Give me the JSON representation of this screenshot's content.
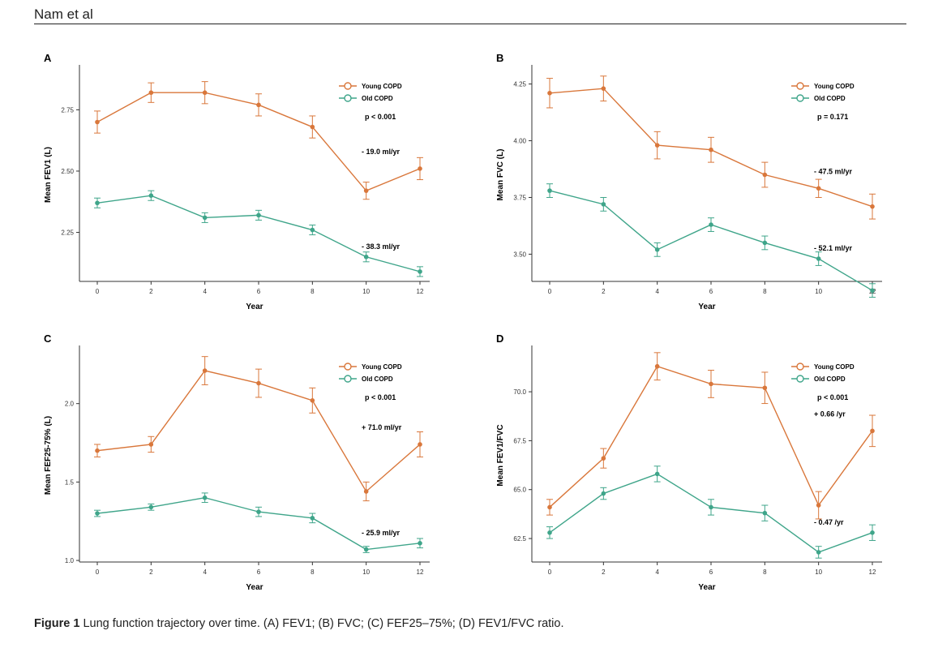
{
  "header": {
    "running_head": "Nam et al"
  },
  "legend": {
    "young": "Young COPD",
    "old": "Old COPD"
  },
  "colors": {
    "young": "#D9773B",
    "old": "#3FA58A",
    "axis": "#333333"
  },
  "caption": {
    "label": "Figure 1",
    "text": "Lung function trajectory over time. (A) FEV1; (B) FVC; (C) FEF25–75%; (D) FEV1/FVC ratio."
  },
  "chart_data": [
    {
      "id": "A",
      "type": "line",
      "title": "A",
      "xlabel": "Year",
      "ylabel": "Mean FEV1 (L)",
      "x": [
        0,
        2,
        4,
        6,
        8,
        10,
        12
      ],
      "xticks": [
        "0",
        "2",
        "4",
        "6",
        "8",
        "10",
        "12"
      ],
      "ylim": [
        2.05,
        2.92
      ],
      "yticks": [
        "2.25",
        "2.50",
        "2.75"
      ],
      "p_value": "p < 0.001",
      "series": [
        {
          "name": "Young COPD",
          "values": [
            2.7,
            2.82,
            2.82,
            2.77,
            2.68,
            2.42,
            2.51
          ],
          "errors": [
            0.045,
            0.04,
            0.045,
            0.045,
            0.045,
            0.035,
            0.045
          ],
          "slope": "- 19.0 ml/yr"
        },
        {
          "name": "Old COPD",
          "values": [
            2.37,
            2.4,
            2.31,
            2.32,
            2.26,
            2.15,
            2.09
          ],
          "errors": [
            0.02,
            0.02,
            0.02,
            0.02,
            0.02,
            0.02,
            0.02
          ],
          "slope": "- 38.3 ml/yr"
        }
      ]
    },
    {
      "id": "B",
      "type": "line",
      "title": "B",
      "xlabel": "Year",
      "ylabel": "Mean FVC (L)",
      "x": [
        0,
        2,
        4,
        6,
        8,
        10,
        12
      ],
      "xticks": [
        "0",
        "2",
        "4",
        "6",
        "8",
        "10",
        "12"
      ],
      "ylim": [
        3.38,
        4.32
      ],
      "yticks": [
        "3.50",
        "3.75",
        "4.00",
        "4.25"
      ],
      "p_value": "p = 0.171",
      "series": [
        {
          "name": "Young COPD",
          "values": [
            4.21,
            4.23,
            3.98,
            3.96,
            3.85,
            3.79,
            3.71
          ],
          "errors": [
            0.065,
            0.055,
            0.06,
            0.055,
            0.055,
            0.04,
            0.055
          ],
          "slope": "- 47.5 ml/yr"
        },
        {
          "name": "Old COPD",
          "values": [
            3.78,
            3.72,
            3.52,
            3.63,
            3.55,
            3.48,
            3.34
          ],
          "errors": [
            0.03,
            0.03,
            0.03,
            0.03,
            0.03,
            0.03,
            0.03
          ],
          "slope": "- 52.1 ml/yr"
        }
      ]
    },
    {
      "id": "C",
      "type": "line",
      "title": "C",
      "xlabel": "Year",
      "ylabel": "Mean FEF25-75% (L)",
      "x": [
        0,
        2,
        4,
        6,
        8,
        10,
        12
      ],
      "xticks": [
        "0",
        "2",
        "4",
        "6",
        "8",
        "10",
        "12"
      ],
      "ylim": [
        0.99,
        2.35
      ],
      "yticks": [
        "1.0",
        "1.5",
        "2.0"
      ],
      "p_value": "p < 0.001",
      "series": [
        {
          "name": "Young COPD",
          "values": [
            1.7,
            1.74,
            2.21,
            2.13,
            2.02,
            1.44,
            1.74
          ],
          "errors": [
            0.04,
            0.05,
            0.09,
            0.09,
            0.08,
            0.06,
            0.08
          ],
          "slope": "+ 71.0 ml/yr"
        },
        {
          "name": "Old COPD",
          "values": [
            1.3,
            1.34,
            1.4,
            1.31,
            1.27,
            1.07,
            1.11
          ],
          "errors": [
            0.02,
            0.02,
            0.03,
            0.03,
            0.03,
            0.02,
            0.03
          ],
          "slope": "- 25.9 ml/yr"
        }
      ]
    },
    {
      "id": "D",
      "type": "line",
      "title": "D",
      "xlabel": "Year",
      "ylabel": "Mean FEV1/FVC",
      "x": [
        0,
        2,
        4,
        6,
        8,
        10,
        12
      ],
      "xticks": [
        "0",
        "2",
        "4",
        "6",
        "8",
        "10",
        "12"
      ],
      "ylim": [
        61.3,
        72.2
      ],
      "yticks": [
        "62.5",
        "65.0",
        "67.5",
        "70.0"
      ],
      "p_value": "p < 0.001",
      "series": [
        {
          "name": "Young COPD",
          "values": [
            64.1,
            66.6,
            71.3,
            70.4,
            70.2,
            64.2,
            68.0
          ],
          "errors": [
            0.4,
            0.5,
            0.7,
            0.7,
            0.8,
            0.7,
            0.8
          ],
          "slope": "+ 0.66 /yr"
        },
        {
          "name": "Old COPD",
          "values": [
            62.8,
            64.8,
            65.8,
            64.1,
            63.8,
            61.8,
            62.8
          ],
          "errors": [
            0.3,
            0.3,
            0.4,
            0.4,
            0.4,
            0.3,
            0.4
          ],
          "slope": "- 0.47 /yr"
        }
      ]
    }
  ]
}
